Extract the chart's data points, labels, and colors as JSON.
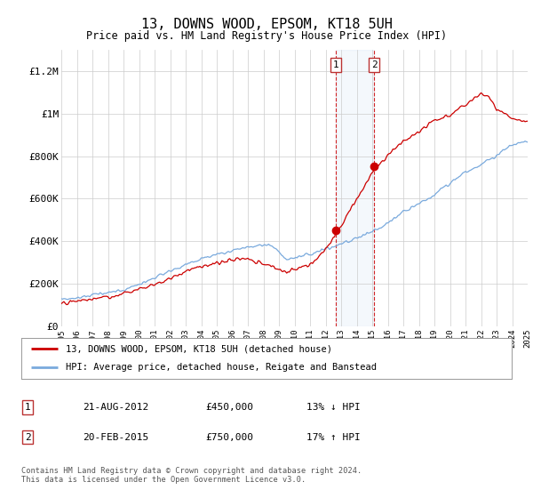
{
  "title": "13, DOWNS WOOD, EPSOM, KT18 5UH",
  "subtitle": "Price paid vs. HM Land Registry's House Price Index (HPI)",
  "legend_line1": "13, DOWNS WOOD, EPSOM, KT18 5UH (detached house)",
  "legend_line2": "HPI: Average price, detached house, Reigate and Banstead",
  "annotation1_label": "1",
  "annotation1_date": "21-AUG-2012",
  "annotation1_price": "£450,000",
  "annotation1_hpi": "13% ↓ HPI",
  "annotation2_label": "2",
  "annotation2_date": "20-FEB-2015",
  "annotation2_price": "£750,000",
  "annotation2_hpi": "17% ↑ HPI",
  "footer": "Contains HM Land Registry data © Crown copyright and database right 2024.\nThis data is licensed under the Open Government Licence v3.0.",
  "red_color": "#cc0000",
  "blue_color": "#7aaadd",
  "background_color": "#ffffff",
  "grid_color": "#cccccc",
  "ylim": [
    0,
    1300000
  ],
  "yticks": [
    0,
    200000,
    400000,
    600000,
    800000,
    1000000,
    1200000
  ],
  "ytick_labels": [
    "£0",
    "£200K",
    "£400K",
    "£600K",
    "£800K",
    "£1M",
    "£1.2M"
  ],
  "xstart_year": 1995,
  "xend_year": 2025,
  "sale1_year": 2012.64,
  "sale1_price": 450000,
  "sale2_year": 2015.13,
  "sale2_price": 750000
}
